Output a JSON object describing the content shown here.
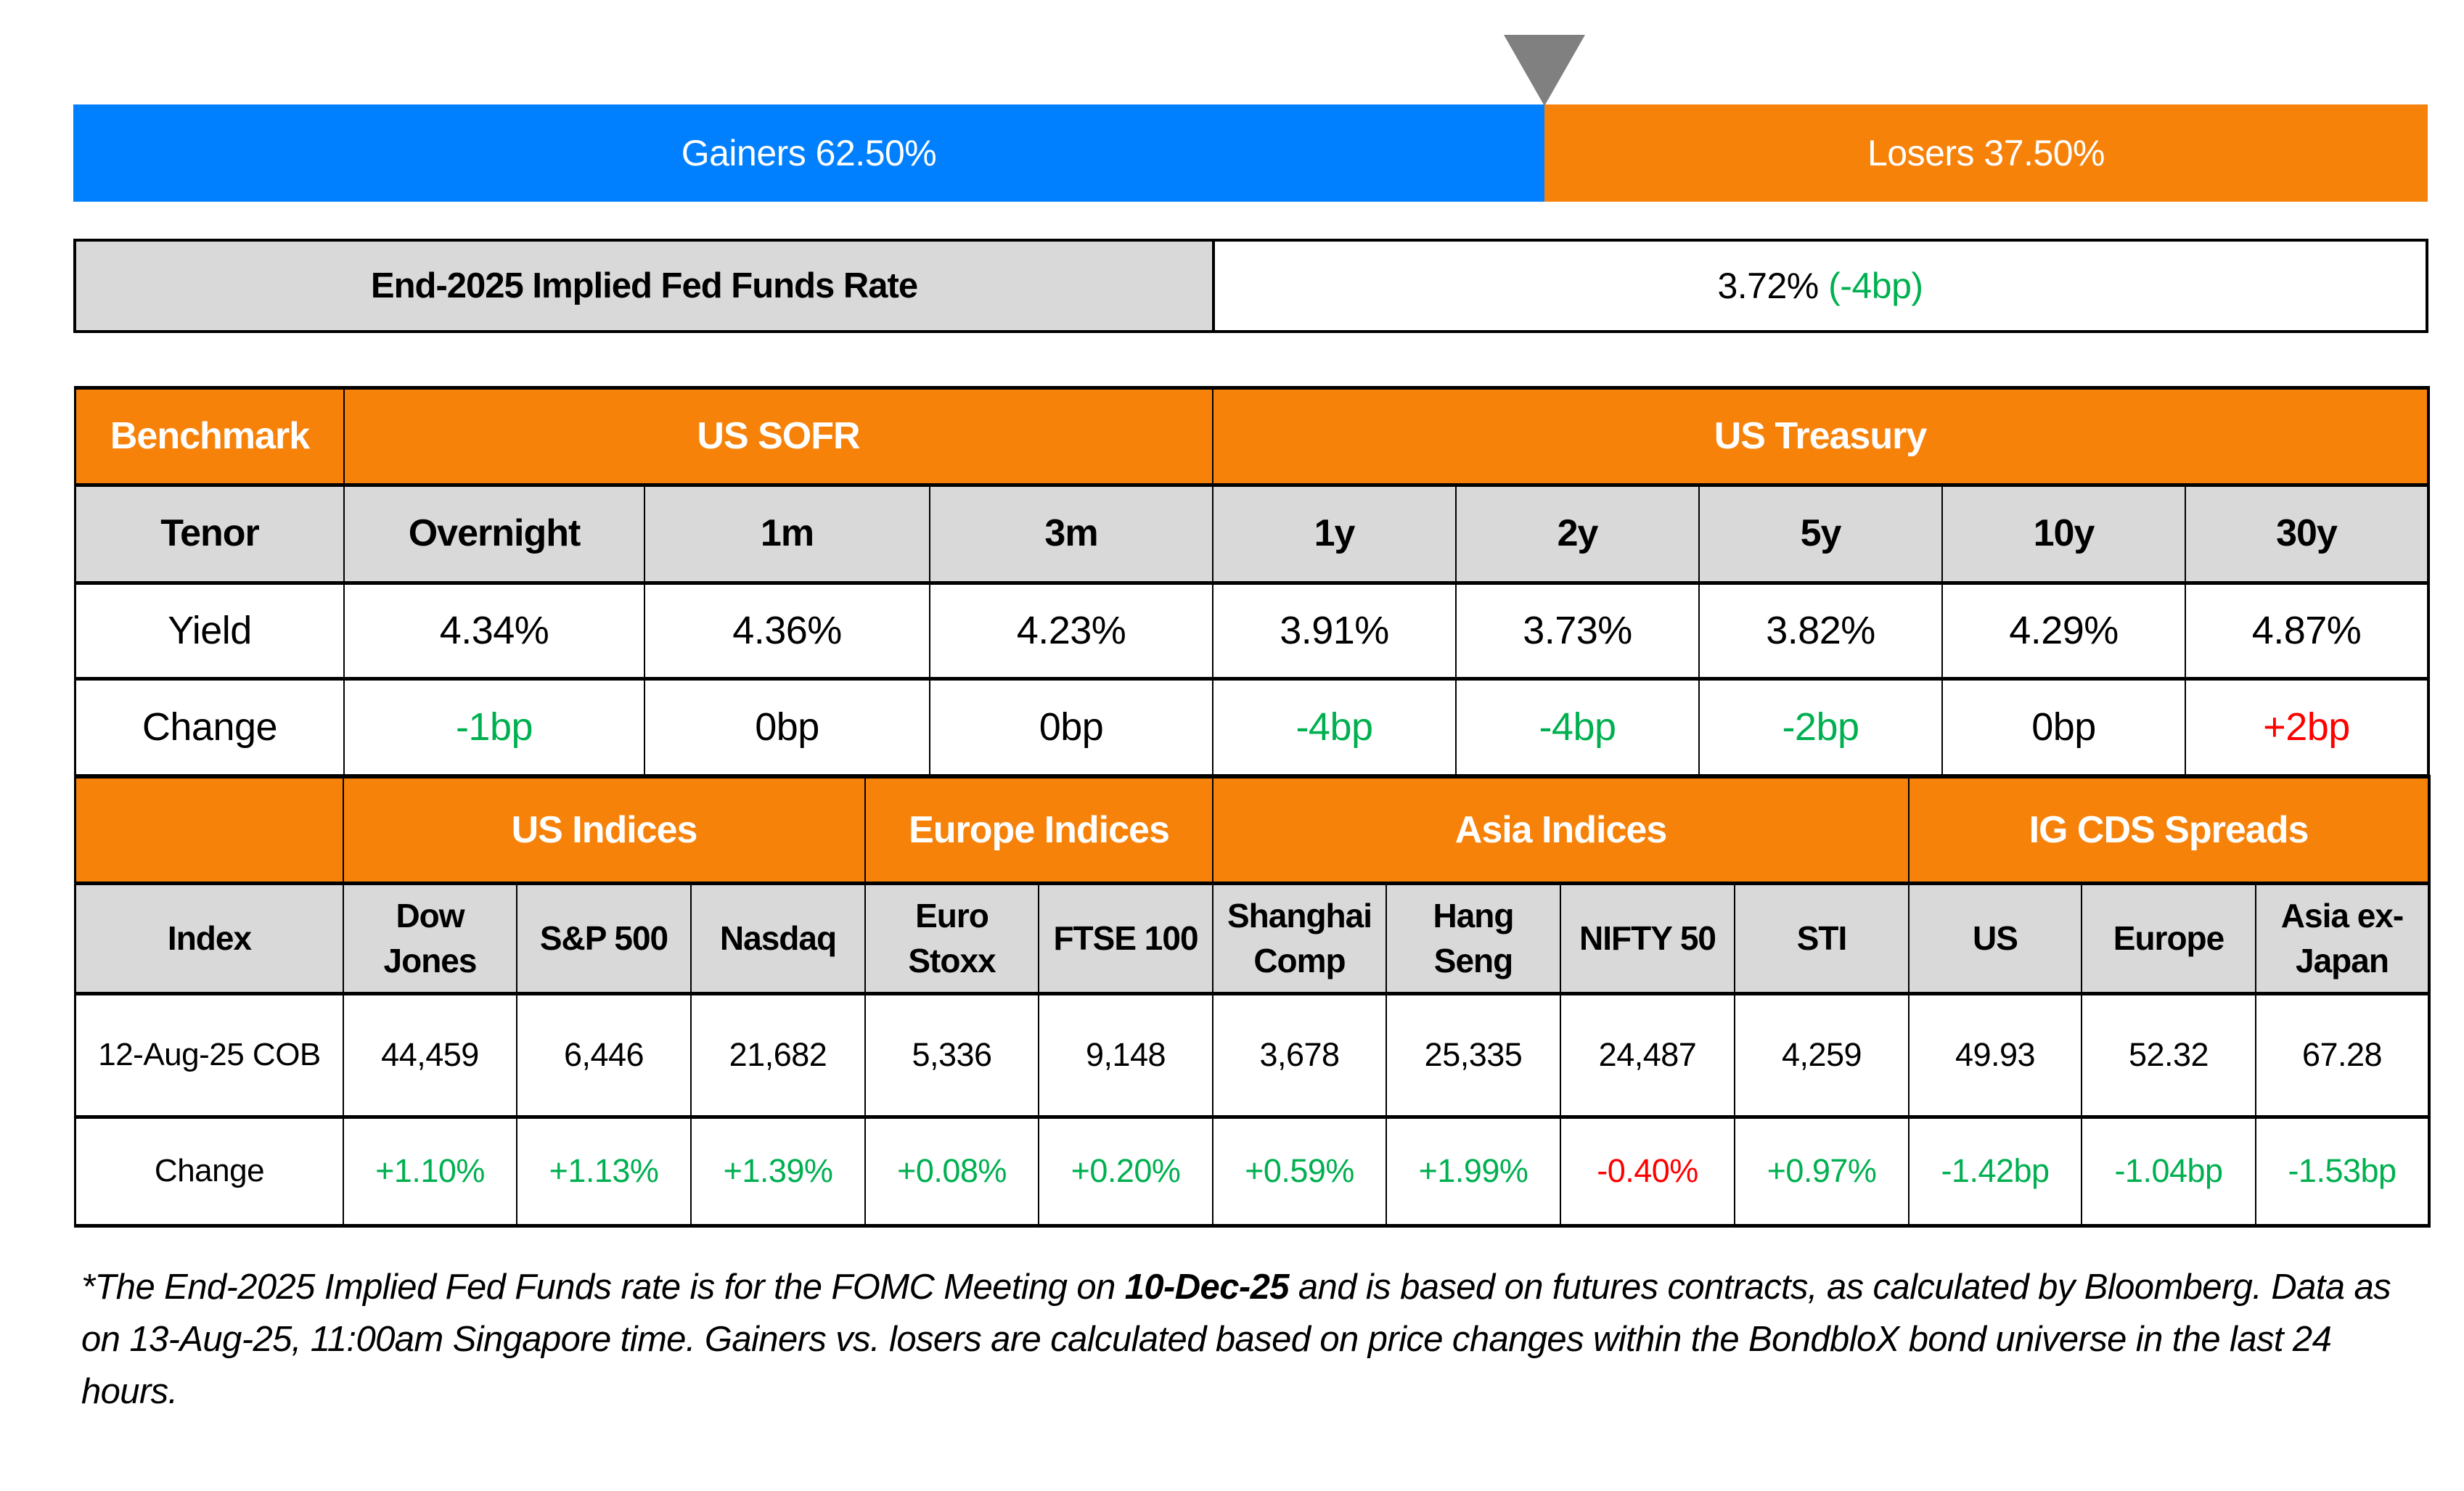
{
  "breadth": {
    "gainers_label": "Gainers 62.50%",
    "losers_label": "Losers 37.50%",
    "gainers_pct": 62.5,
    "losers_pct": 37.5,
    "colors": {
      "gainers": "#0080FF",
      "losers": "#F7820A",
      "marker": "#808080"
    }
  },
  "fed_funds": {
    "label": "End-2025 Implied Fed Funds Rate",
    "value": "3.72%",
    "change": "(-4bp)",
    "change_color": "#00B050"
  },
  "rates_table": {
    "groups": [
      {
        "label": "Benchmark"
      },
      {
        "label": "US SOFR"
      },
      {
        "label": "US Treasury"
      }
    ],
    "tenor_label": "Tenor",
    "tenors": [
      "Overnight",
      "1m",
      "3m",
      "1y",
      "2y",
      "5y",
      "10y",
      "30y"
    ],
    "yield_label": "Yield",
    "yields": [
      "4.34%",
      "4.36%",
      "4.23%",
      "3.91%",
      "3.73%",
      "3.82%",
      "4.29%",
      "4.87%"
    ],
    "change_label": "Change",
    "changes": [
      {
        "text": "-1bp",
        "dir": "green"
      },
      {
        "text": "0bp",
        "dir": "black"
      },
      {
        "text": "0bp",
        "dir": "black"
      },
      {
        "text": "-4bp",
        "dir": "green"
      },
      {
        "text": "-4bp",
        "dir": "green"
      },
      {
        "text": "-2bp",
        "dir": "green"
      },
      {
        "text": "0bp",
        "dir": "black"
      },
      {
        "text": "+2bp",
        "dir": "red"
      }
    ]
  },
  "markets_table": {
    "groups": [
      {
        "label": ""
      },
      {
        "label": "US Indices"
      },
      {
        "label": "Europe Indices"
      },
      {
        "label": "Asia Indices"
      },
      {
        "label": "IG CDS Spreads"
      }
    ],
    "index_label": "Index",
    "names": [
      [
        "Dow",
        "Jones"
      ],
      [
        "S&P 500"
      ],
      [
        "Nasdaq"
      ],
      [
        "Euro",
        "Stoxx"
      ],
      [
        "FTSE 100"
      ],
      [
        "Shanghai",
        "Comp"
      ],
      [
        "Hang",
        "Seng"
      ],
      [
        "NIFTY 50"
      ],
      [
        "STI"
      ],
      [
        "US"
      ],
      [
        "Europe"
      ],
      [
        "Asia ex-",
        "Japan"
      ]
    ],
    "date_label": "12-Aug-25 COB",
    "values": [
      "44,459",
      "6,446",
      "21,682",
      "5,336",
      "9,148",
      "3,678",
      "25,335",
      "24,487",
      "4,259",
      "49.93",
      "52.32",
      "67.28"
    ],
    "change_label": "Change",
    "changes": [
      {
        "text": "+1.10%",
        "dir": "green"
      },
      {
        "text": "+1.13%",
        "dir": "green"
      },
      {
        "text": "+1.39%",
        "dir": "green"
      },
      {
        "text": "+0.08%",
        "dir": "green"
      },
      {
        "text": "+0.20%",
        "dir": "green"
      },
      {
        "text": "+0.59%",
        "dir": "green"
      },
      {
        "text": "+1.99%",
        "dir": "green"
      },
      {
        "text": "-0.40%",
        "dir": "red"
      },
      {
        "text": "+0.97%",
        "dir": "green"
      },
      {
        "text": "-1.42bp",
        "dir": "green"
      },
      {
        "text": "-1.04bp",
        "dir": "green"
      },
      {
        "text": "-1.53bp",
        "dir": "green"
      }
    ]
  },
  "colors": {
    "header_orange": "#F7820A",
    "subheader_grey": "#D9D9D9",
    "positive_green": "#00B050",
    "negative_red": "#FF0000"
  },
  "footnote": {
    "part1": "*The End-2025 Implied Fed Funds rate is for the FOMC Meeting on ",
    "bold": "10-Dec-25",
    "part2": " and is based on futures contracts, as calculated by Bloomberg. Data as on 13-Aug-25, 11:00am Singapore time. Gainers vs. losers are calculated based on price changes within the BondbloX bond universe in the last 24 hours."
  }
}
